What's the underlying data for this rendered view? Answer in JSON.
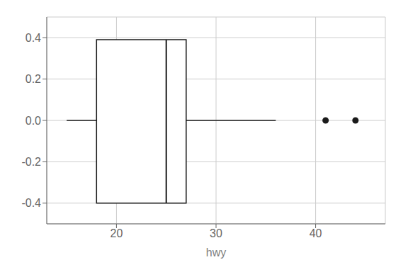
{
  "chart_data": {
    "type": "box",
    "xlabel": "hwy",
    "xlim": [
      13,
      47
    ],
    "xticks": [
      20,
      30,
      40
    ],
    "ylim": [
      -0.5,
      0.5
    ],
    "yticks": [
      -0.4,
      -0.2,
      {
        "value": 0,
        "label": "0.0"
      },
      0.2,
      0.4
    ],
    "grid": true,
    "color": "#1A1A1A",
    "box": {
      "q1": 18.0,
      "median": 25.0,
      "q3": 27.0,
      "whisker_low": 15.0,
      "whisker_high": 36.0,
      "top": 0.39,
      "bottom": -0.4,
      "center": 0.0
    },
    "outliers": {
      "x": [
        41.0,
        44.0
      ],
      "y": [
        0.0,
        0.0
      ]
    }
  }
}
